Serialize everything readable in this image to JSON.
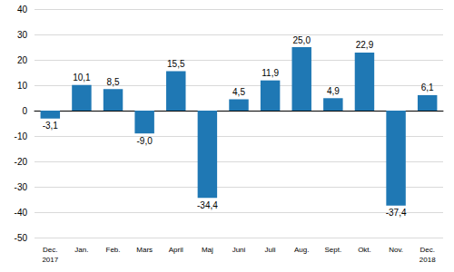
{
  "chart_data": {
    "type": "bar",
    "categories": [
      "Dec.\n2017",
      "Jan.",
      "Feb.",
      "Mars",
      "April",
      "Maj",
      "Juni",
      "Juli",
      "Aug.",
      "Sept.",
      "Okt.",
      "Nov.",
      "Dec.\n2018"
    ],
    "values": [
      -3.1,
      10.1,
      8.5,
      -9.0,
      15.5,
      -34.4,
      4.5,
      11.9,
      25.0,
      4.9,
      22.9,
      -37.4,
      6.1
    ],
    "value_labels": [
      "-3,1",
      "10,1",
      "8,5",
      "-9,0",
      "15,5",
      "-34,4",
      "4,5",
      "11,9",
      "25,0",
      "4,9",
      "22,9",
      "-37,4",
      "6,1"
    ],
    "color": "#1f78b4",
    "ylim": [
      -50,
      40
    ],
    "yticks": [
      -50,
      -40,
      -30,
      -20,
      -10,
      0,
      10,
      20,
      30,
      40
    ],
    "grid": true,
    "data_labels": true
  }
}
